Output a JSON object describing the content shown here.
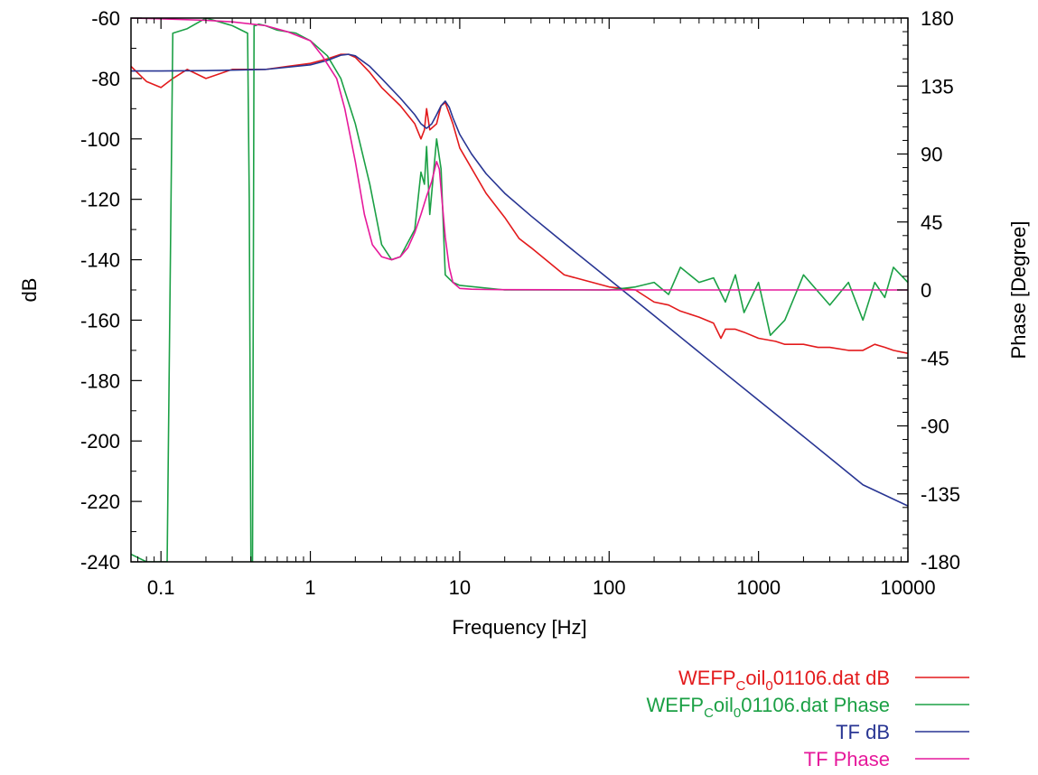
{
  "chart_data": {
    "type": "line",
    "xlabel": "Frequency [Hz]",
    "ylabel": "dB",
    "y2label": "Phase [Degree]",
    "x_scale": "log",
    "xlim": [
      0.063,
      10000
    ],
    "ylim": [
      -240,
      -60
    ],
    "y2lim": [
      -180,
      180
    ],
    "grid": false,
    "legend_position": "below-right",
    "x_tick_labels": [
      "0.1",
      "1",
      "10",
      "100",
      "1000",
      "10000"
    ],
    "x_ticks": [
      0.1,
      1,
      10,
      100,
      1000,
      10000
    ],
    "y_tick_labels": [
      "-60",
      "-80",
      "-100",
      "-120",
      "-140",
      "-160",
      "-180",
      "-200",
      "-220",
      "-240"
    ],
    "y_ticks": [
      -60,
      -80,
      -100,
      -120,
      -140,
      -160,
      -180,
      -200,
      -220,
      -240
    ],
    "y2_tick_labels": [
      "180",
      "135",
      "90",
      "45",
      "0",
      "-45",
      "-90",
      "-135",
      "-180"
    ],
    "y2_ticks": [
      180,
      135,
      90,
      45,
      0,
      -45,
      -90,
      -135,
      -180
    ],
    "series": [
      {
        "legend": {
          "main": "WEFP",
          "sub1": "C",
          "mid": "oil",
          "sub2": "0",
          "tail": "01106.dat dB"
        },
        "color": "#e31a1c",
        "axis": "y",
        "x": [
          0.063,
          0.08,
          0.1,
          0.12,
          0.15,
          0.2,
          0.3,
          0.4,
          0.5,
          0.7,
          1,
          1.3,
          1.6,
          1.8,
          2,
          2.5,
          3,
          4,
          5,
          5.5,
          5.8,
          6,
          6.3,
          7,
          7.5,
          8,
          9,
          10,
          15,
          20,
          25,
          30,
          50,
          100,
          150,
          200,
          250,
          300,
          400,
          500,
          560,
          600,
          700,
          800,
          1000,
          1300,
          1500,
          2000,
          2500,
          3000,
          4000,
          5000,
          6000,
          7000,
          8000,
          10000
        ],
        "y": [
          -76,
          -81,
          -83,
          -80,
          -77,
          -80,
          -77,
          -77,
          -77,
          -76,
          -75,
          -73.5,
          -72,
          -72,
          -73,
          -78,
          -83,
          -89,
          -95,
          -100,
          -97,
          -90,
          -97,
          -95,
          -89,
          -88,
          -95,
          -103,
          -118,
          -126,
          -133,
          -136,
          -145,
          -149,
          -150,
          -154,
          -155,
          -157,
          -159,
          -161,
          -166,
          -163,
          -163,
          -164,
          -166,
          -167,
          -168,
          -168,
          -169,
          -169,
          -170,
          -170,
          -168,
          -169,
          -170,
          -171
        ]
      },
      {
        "legend": {
          "main": "WEFP",
          "sub1": "C",
          "mid": "oil",
          "sub2": "0",
          "tail": "01106.dat Phase"
        },
        "color": "#1ba045",
        "axis": "y2",
        "x": [
          0.063,
          0.08,
          0.09,
          0.1,
          0.11,
          0.12,
          0.15,
          0.2,
          0.3,
          0.38,
          0.39,
          0.4,
          0.41,
          0.42,
          0.43,
          0.45,
          0.5,
          0.6,
          0.8,
          1,
          1.3,
          1.6,
          2,
          2.5,
          3,
          3.5,
          4,
          5,
          5.5,
          5.8,
          6,
          6.3,
          7,
          7.5,
          8,
          9,
          10,
          20,
          50,
          100,
          150,
          200,
          250,
          300,
          400,
          500,
          600,
          700,
          800,
          1000,
          1200,
          1500,
          2000,
          3000,
          4000,
          5000,
          6000,
          7000,
          8000,
          10000
        ],
        "y": [
          -175,
          -180,
          -180,
          -180,
          -180,
          170,
          173,
          180,
          175,
          170,
          60,
          -180,
          -180,
          175,
          175,
          176,
          175,
          172,
          170,
          165,
          155,
          140,
          110,
          70,
          30,
          20,
          22,
          40,
          78,
          70,
          95,
          50,
          100,
          80,
          10,
          5,
          3,
          0,
          0,
          0,
          2,
          5,
          -3,
          15,
          5,
          8,
          -8,
          10,
          -15,
          5,
          -30,
          -20,
          10,
          -10,
          5,
          -20,
          5,
          -5,
          15,
          5
        ]
      },
      {
        "legend": {
          "main": "TF dB"
        },
        "color": "#283593",
        "axis": "y",
        "x": [
          0.063,
          0.1,
          0.2,
          0.5,
          1,
          1.3,
          1.6,
          1.8,
          2,
          2.5,
          3,
          4,
          5,
          5.5,
          6,
          6.5,
          7,
          7.5,
          8,
          8.5,
          9,
          10,
          12,
          15,
          20,
          30,
          50,
          100,
          200,
          500,
          1000,
          2000,
          5000,
          10000
        ],
        "y": [
          -77.5,
          -77.5,
          -77.4,
          -77,
          -75.5,
          -74,
          -72.3,
          -72,
          -72.5,
          -76,
          -80,
          -86.5,
          -92,
          -95,
          -96.5,
          -95,
          -92,
          -89,
          -87.5,
          -89.5,
          -93,
          -98.5,
          -105,
          -111.5,
          -118,
          -125.5,
          -134.5,
          -146.5,
          -158.5,
          -174.5,
          -186.5,
          -198.5,
          -214.5,
          -221.5
        ]
      },
      {
        "legend": {
          "main": "TF Phase"
        },
        "color": "#e6199b",
        "axis": "y2",
        "x": [
          0.063,
          0.1,
          0.2,
          0.3,
          0.5,
          0.7,
          1,
          1.2,
          1.5,
          1.7,
          2,
          2.3,
          2.6,
          3,
          3.5,
          4,
          4.5,
          5,
          5.5,
          6,
          6.5,
          7,
          7.3,
          7.6,
          8,
          8.5,
          9,
          10,
          12,
          15,
          20,
          50,
          100,
          1000,
          10000
        ],
        "y": [
          180,
          179.5,
          178.5,
          177.5,
          175,
          171,
          165,
          155,
          140,
          120,
          85,
          50,
          30,
          22,
          20,
          22,
          28,
          38,
          50,
          62,
          72,
          85,
          80,
          60,
          35,
          15,
          5,
          1,
          0.5,
          0.3,
          0.2,
          0.1,
          0,
          0,
          0
        ]
      }
    ]
  }
}
